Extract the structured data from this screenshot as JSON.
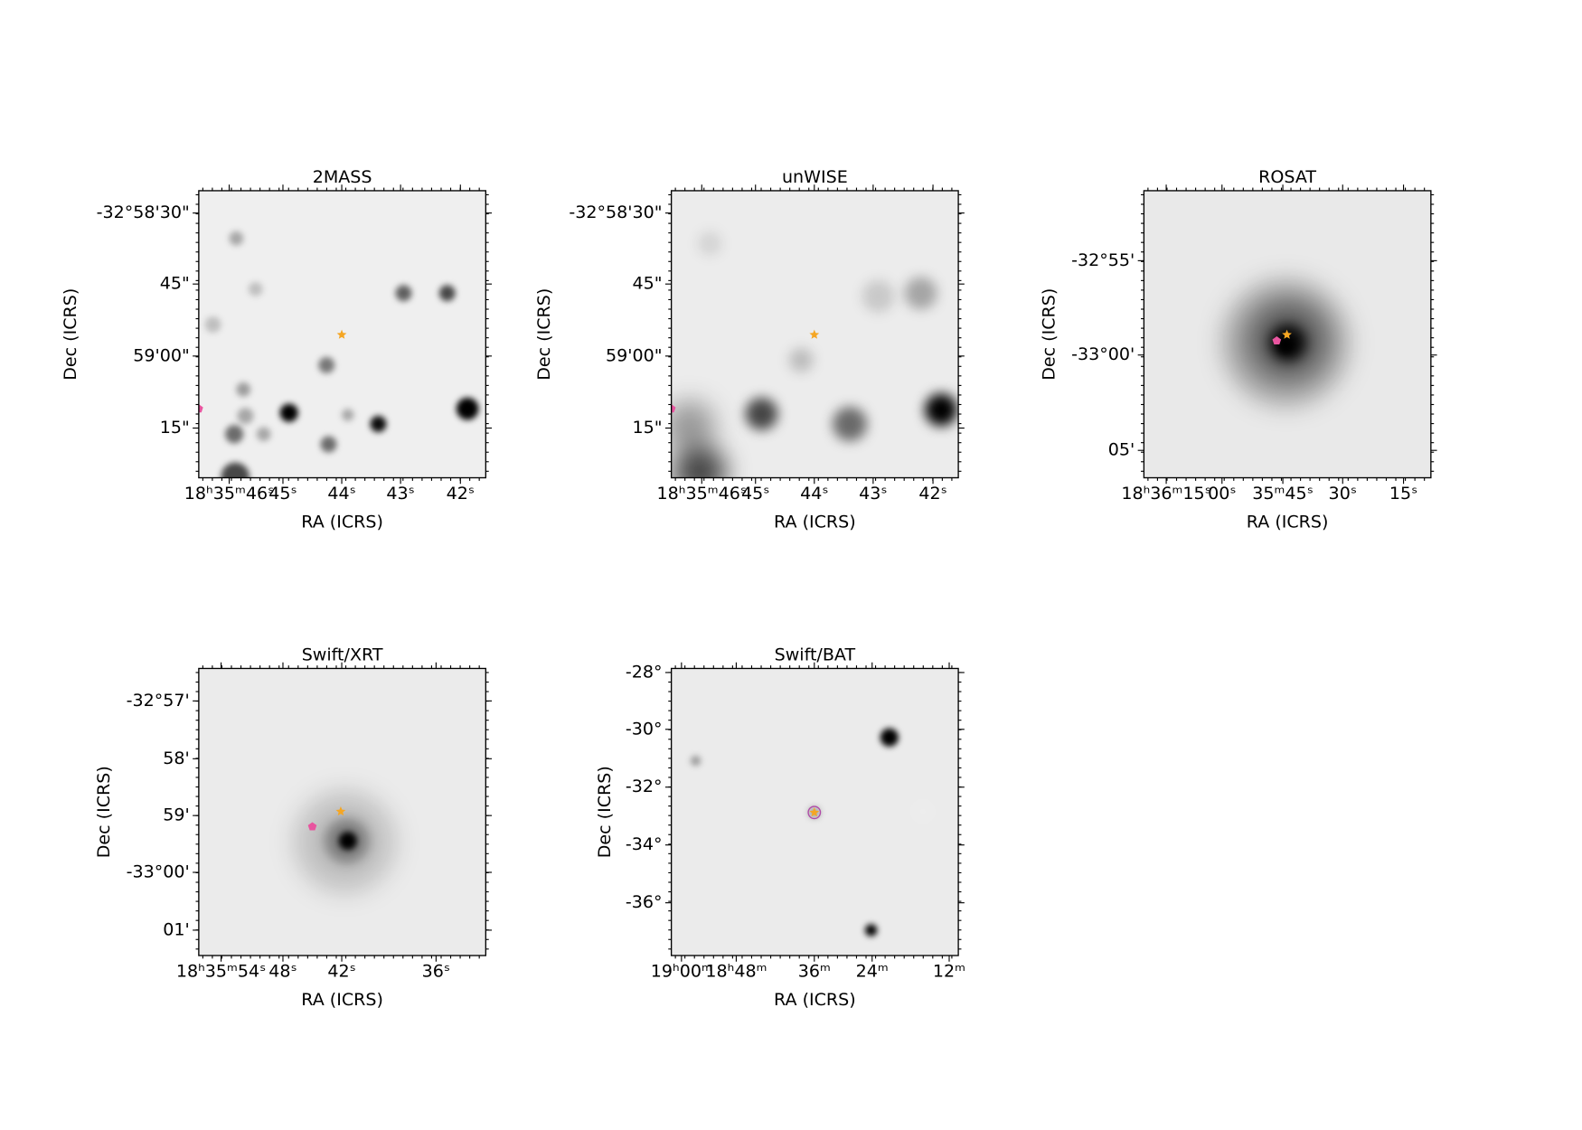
{
  "panels": [
    {
      "title": "2MASS",
      "x_label": "RA (ICRS)",
      "y_label": "Dec (ICRS)",
      "x_ticks": [
        "18ʰ35ᵐ46ˢ",
        "45ˢ",
        "44ˢ",
        "43ˢ",
        "42ˢ"
      ],
      "y_ticks": [
        "-32°58'30\"",
        "45\"",
        "59'00\"",
        "15\""
      ]
    },
    {
      "title": "unWISE",
      "x_label": "RA (ICRS)",
      "y_label": "Dec (ICRS)",
      "x_ticks": [
        "18ʰ35ᵐ46ˢ",
        "45ˢ",
        "44ˢ",
        "43ˢ",
        "42ˢ"
      ],
      "y_ticks": [
        "-32°58'30\"",
        "45\"",
        "59'00\"",
        "15\""
      ]
    },
    {
      "title": "ROSAT",
      "x_label": "RA (ICRS)",
      "y_label": "Dec (ICRS)",
      "x_ticks": [
        "18ʰ36ᵐ15ˢ",
        "00ˢ",
        "35ᵐ45ˢ",
        "30ˢ",
        "15ˢ"
      ],
      "y_ticks": [
        "-32°55'",
        "-33°00'",
        "05'"
      ]
    },
    {
      "title": "Swift/XRT",
      "x_label": "RA (ICRS)",
      "y_label": "Dec (ICRS)",
      "x_ticks": [
        "18ʰ35ᵐ54ˢ",
        "48ˢ",
        "42ˢ",
        "36ˢ"
      ],
      "y_ticks": [
        "-32°57'",
        "58'",
        "59'",
        "-33°00'",
        "01'"
      ]
    },
    {
      "title": "Swift/BAT",
      "x_label": "RA (ICRS)",
      "y_label": "Dec (ICRS)",
      "x_ticks": [
        "19ʰ00ᵐ",
        "18ʰ48ᵐ",
        "36ᵐ",
        "24ᵐ",
        "12ᵐ"
      ],
      "y_ticks": [
        "-28°",
        "-30°",
        "-32°",
        "-34°",
        "-36°"
      ]
    }
  ]
}
